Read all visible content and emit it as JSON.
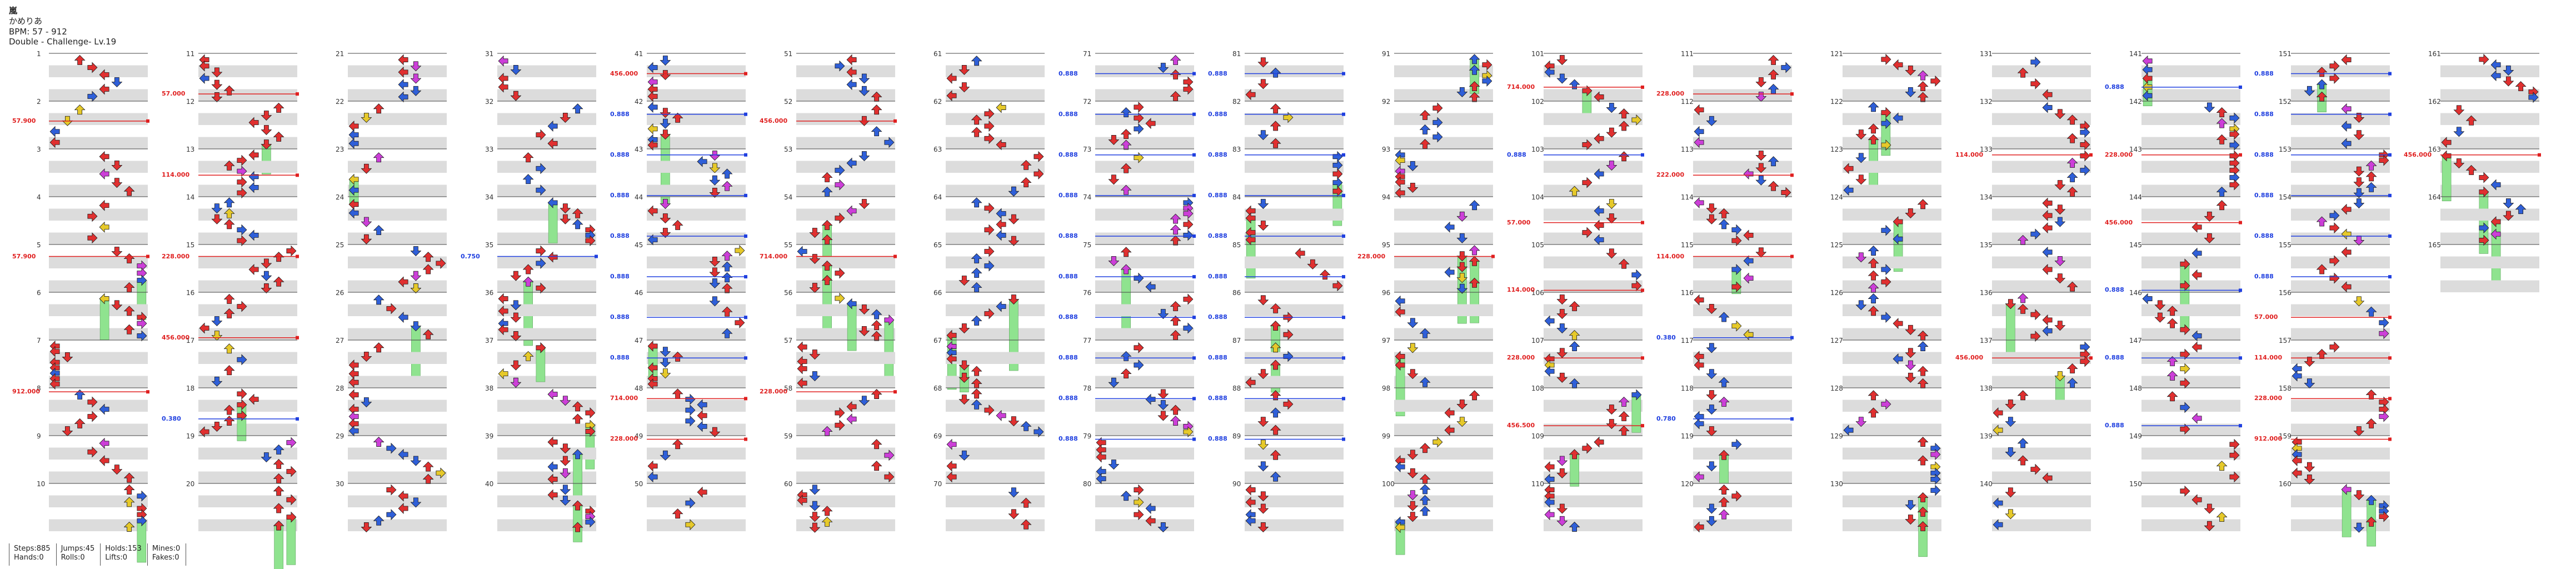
{
  "header": {
    "title": "嵐",
    "artist": "かめりあ",
    "bpm": "BPM: 57 - 912",
    "difficulty": "Double - Challenge- Lv.19"
  },
  "stats": {
    "steps": "Steps:885",
    "jumps": "Jumps:45",
    "holds": "Holds:153",
    "mines": "Mines:0",
    "hands": "Hands:0",
    "rolls": "Rolls:0",
    "lifts": "Lifts:0",
    "fakes": "Fakes:0"
  },
  "colors": {
    "quarter": "#e03030",
    "eighth": "#2f5fd8",
    "sixteenth": "#cc3fd8",
    "twelfth": "#e6c92a",
    "twentyfourth": "#2ab3b3",
    "hold": "#8fe38f",
    "stripe": "#dcdcdc",
    "bpm_up": "#e02020",
    "bpm_low": "#2040e0"
  },
  "columns": [
    {
      "first_measure": 1,
      "bpm_labels": [
        "57.900",
        "57.900",
        "912.000"
      ]
    },
    {
      "first_measure": 11,
      "bpm_labels": [
        "57.000",
        "114.000",
        "228.000",
        "456.000",
        "0.380"
      ]
    },
    {
      "first_measure": 21,
      "bpm_labels": []
    },
    {
      "first_measure": 31,
      "bpm_labels": [
        "0.750"
      ]
    },
    {
      "first_measure": 41,
      "bpm_labels": [
        "456.000",
        "0.888",
        "0.888",
        "0.888",
        "0.888",
        "0.888",
        "0.888",
        "0.888",
        "714.000",
        "228.000"
      ]
    },
    {
      "first_measure": 51,
      "bpm_labels": [
        "456.000",
        "714.000",
        "228.000"
      ]
    },
    {
      "first_measure": 61,
      "bpm_labels": []
    },
    {
      "first_measure": 71,
      "bpm_labels": [
        "0.888",
        "0.888",
        "0.888",
        "0.888",
        "0.888",
        "0.888",
        "0.888",
        "0.888",
        "0.888",
        "0.888"
      ]
    },
    {
      "first_measure": 81,
      "bpm_labels": [
        "0.888",
        "0.888",
        "0.888",
        "0.888",
        "0.888",
        "0.888",
        "0.888",
        "0.888",
        "0.888",
        "0.888"
      ]
    },
    {
      "first_measure": 91,
      "bpm_labels": [
        "228.000"
      ]
    },
    {
      "first_measure": 101,
      "bpm_labels": [
        "714.000",
        "0.888",
        "57.000",
        "114.000",
        "228.000",
        "456.500"
      ]
    },
    {
      "first_measure": 111,
      "bpm_labels": [
        "228.000",
        "222.000",
        "114.000",
        "0.380",
        "0.780"
      ]
    },
    {
      "first_measure": 121,
      "bpm_labels": []
    },
    {
      "first_measure": 131,
      "bpm_labels": [
        "114.000",
        "456.000"
      ]
    },
    {
      "first_measure": 141,
      "bpm_labels": [
        "0.888",
        "228.000",
        "456.000",
        "0.888",
        "0.888",
        "0.888"
      ]
    },
    {
      "first_measure": 151,
      "bpm_labels": [
        "0.888",
        "0.888",
        "0.888",
        "0.888",
        "0.888",
        "0.888",
        "57.000",
        "114.000",
        "228.000",
        "912.000"
      ]
    },
    {
      "first_measure": 161,
      "bpm_labels": [
        "456.000"
      ]
    }
  ]
}
